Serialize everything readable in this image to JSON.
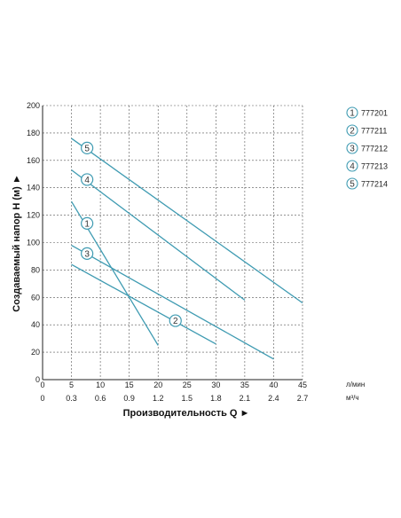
{
  "chart_data": {
    "type": "line",
    "xlabel": "Производительность Q ►",
    "ylabel": "Создаваемый напор H (м) ►",
    "x_unit_primary": "л/мин",
    "x_unit_secondary": "м³/ч",
    "xlim": [
      0,
      45
    ],
    "ylim": [
      0,
      200
    ],
    "x_ticks": [
      0,
      5,
      10,
      15,
      20,
      25,
      30,
      35,
      40,
      45
    ],
    "x_ticks_secondary": [
      "0",
      "0.3",
      "0.6",
      "0.9",
      "1.2",
      "1.5",
      "1.8",
      "2.1",
      "2.4",
      "2.7"
    ],
    "y_ticks": [
      0,
      20,
      40,
      60,
      80,
      100,
      120,
      140,
      160,
      180,
      200
    ],
    "grid": true,
    "legend_position": "right",
    "line_color": "#3f9bb2",
    "series": [
      {
        "name": "777201",
        "marker": "1",
        "x": [
          5,
          20
        ],
        "y": [
          130,
          25
        ],
        "label_at": [
          7.7,
          114
        ]
      },
      {
        "name": "777211",
        "marker": "2",
        "x": [
          5,
          30
        ],
        "y": [
          84,
          26
        ],
        "label_at": [
          23,
          43
        ]
      },
      {
        "name": "777212",
        "marker": "3",
        "x": [
          5,
          40
        ],
        "y": [
          98,
          15
        ],
        "label_at": [
          7.7,
          92
        ]
      },
      {
        "name": "777213",
        "marker": "4",
        "x": [
          5,
          35
        ],
        "y": [
          153,
          58
        ],
        "label_at": [
          7.7,
          146
        ]
      },
      {
        "name": "777214",
        "marker": "5",
        "x": [
          5,
          45
        ],
        "y": [
          176,
          56
        ],
        "label_at": [
          7.7,
          169
        ]
      }
    ]
  }
}
